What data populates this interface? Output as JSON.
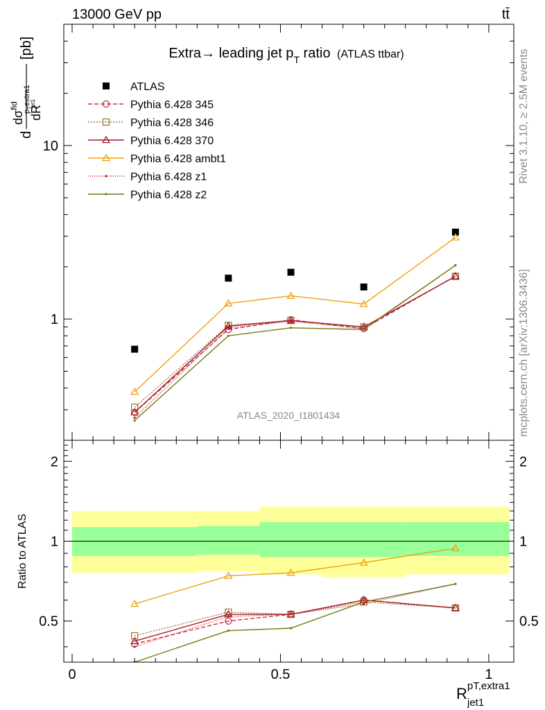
{
  "header": {
    "left": "13000 GeV pp",
    "right": "tt̄"
  },
  "side": {
    "rivet": "Rivet 3.1.10, ≥ 2.5M events",
    "mcplots": "mcplots.cern.ch [arXiv:1306.3436]"
  },
  "chart_data": [
    {
      "type": "line",
      "panel": "main",
      "title": {
        "main": "Extra→ leading jet p",
        "sub": "T",
        "tail": " ratio",
        "small": "(ATLAS ttbar)"
      },
      "watermark": "ATLAS_2020_I1801434",
      "ylabel": {
        "d": "d",
        "dR": "dR",
        "sigma": "dσ",
        "sigma_sup": "fid",
        "sub_p": "p",
        "sub_T": "T",
        "sub_extra": "extra1",
        "sub_jet": "jet1",
        "unit": "[pb]"
      },
      "xlim": [
        -0.02,
        1.06
      ],
      "ylim": [
        0.2,
        50
      ],
      "yscale": "log",
      "ytick_labels": [
        {
          "v": 1,
          "t": "1"
        },
        {
          "v": 10,
          "t": "10"
        }
      ],
      "x": [
        0.15,
        0.375,
        0.525,
        0.7,
        0.92
      ],
      "legend_position": "top-left",
      "series": [
        {
          "name": "ATLAS",
          "color": "#000000",
          "marker": "square",
          "dash": "none",
          "values": [
            0.67,
            1.72,
            1.86,
            1.53,
            3.17
          ]
        },
        {
          "name": "Pythia 6.428 345",
          "color": "#c0304a",
          "marker": "circle",
          "dash": "6,3",
          "values": [
            0.29,
            0.87,
            0.99,
            0.88,
            1.77
          ]
        },
        {
          "name": "Pythia 6.428 346",
          "color": "#a07838",
          "marker": "square-open",
          "dash": "2,2",
          "values": [
            0.31,
            0.92,
            0.98,
            0.9,
            1.76
          ]
        },
        {
          "name": "Pythia 6.428 370",
          "color": "#a01828",
          "marker": "triangle",
          "dash": "none",
          "values": [
            0.29,
            0.91,
            0.98,
            0.9,
            1.76
          ]
        },
        {
          "name": "Pythia 6.428 ambt1",
          "color": "#f0a010",
          "marker": "triangle",
          "dash": "none",
          "values": [
            0.38,
            1.23,
            1.36,
            1.22,
            2.95
          ]
        },
        {
          "name": "Pythia 6.428 z1",
          "color": "#c01818",
          "marker": "dot",
          "dash": "1,2",
          "values": [
            0.27,
            0.89,
            0.97,
            0.88,
            2.04
          ]
        },
        {
          "name": "Pythia 6.428 z2",
          "color": "#707a10",
          "marker": "dot",
          "dash": "none",
          "values": [
            0.26,
            0.8,
            0.89,
            0.87,
            2.04
          ]
        }
      ]
    },
    {
      "type": "line",
      "panel": "ratio",
      "ylabel": "Ratio to ATLAS",
      "xlabel": {
        "base": "R",
        "sup": "pT,extra1",
        "sub": "jet1"
      },
      "xlim": [
        -0.02,
        1.06
      ],
      "ylim": [
        0.35,
        2.4
      ],
      "yscale": "log",
      "ytick_labels": [
        {
          "v": 0.5,
          "t": "0.5"
        },
        {
          "v": 1,
          "t": "1"
        },
        {
          "v": 2,
          "t": "2"
        }
      ],
      "xtick_labels": [
        {
          "v": 0,
          "t": "0"
        },
        {
          "v": 0.5,
          "t": "0.5"
        },
        {
          "v": 1,
          "t": "1"
        }
      ],
      "x": [
        0.15,
        0.375,
        0.525,
        0.7,
        0.92
      ],
      "bands": [
        {
          "x0": 0.0,
          "x1": 0.3,
          "outer": [
            0.76,
            1.3
          ],
          "inner": [
            0.88,
            1.13
          ]
        },
        {
          "x0": 0.3,
          "x1": 0.45,
          "outer": [
            0.77,
            1.3
          ],
          "inner": [
            0.89,
            1.14
          ]
        },
        {
          "x0": 0.45,
          "x1": 0.6,
          "outer": [
            0.75,
            1.35
          ],
          "inner": [
            0.87,
            1.18
          ]
        },
        {
          "x0": 0.6,
          "x1": 0.8,
          "outer": [
            0.73,
            1.35
          ],
          "inner": [
            0.87,
            1.18
          ]
        },
        {
          "x0": 0.8,
          "x1": 1.05,
          "outer": [
            0.75,
            1.35
          ],
          "inner": [
            0.88,
            1.18
          ]
        }
      ],
      "series": [
        {
          "name": "Pythia 6.428 345",
          "color": "#c0304a",
          "marker": "circle",
          "dash": "6,3",
          "values": [
            0.41,
            0.5,
            0.53,
            0.6,
            0.56
          ]
        },
        {
          "name": "Pythia 6.428 346",
          "color": "#a07838",
          "marker": "square-open",
          "dash": "2,2",
          "values": [
            0.44,
            0.54,
            0.53,
            0.59,
            0.56
          ]
        },
        {
          "name": "Pythia 6.428 370",
          "color": "#a01828",
          "marker": "triangle",
          "dash": "none",
          "values": [
            0.42,
            0.53,
            0.53,
            0.6,
            0.56
          ]
        },
        {
          "name": "Pythia 6.428 ambt1",
          "color": "#f0a010",
          "marker": "triangle",
          "dash": "none",
          "values": [
            0.58,
            0.74,
            0.76,
            0.83,
            0.94
          ]
        },
        {
          "name": "Pythia 6.428 z1",
          "color": "#c01818",
          "marker": "dot",
          "dash": "1,2",
          "values": [
            0.4,
            0.52,
            0.53,
            0.58,
            0.69
          ]
        },
        {
          "name": "Pythia 6.428 z2",
          "color": "#707a10",
          "marker": "dot",
          "dash": "none",
          "values": [
            0.35,
            0.46,
            0.47,
            0.59,
            0.69
          ]
        }
      ]
    }
  ]
}
